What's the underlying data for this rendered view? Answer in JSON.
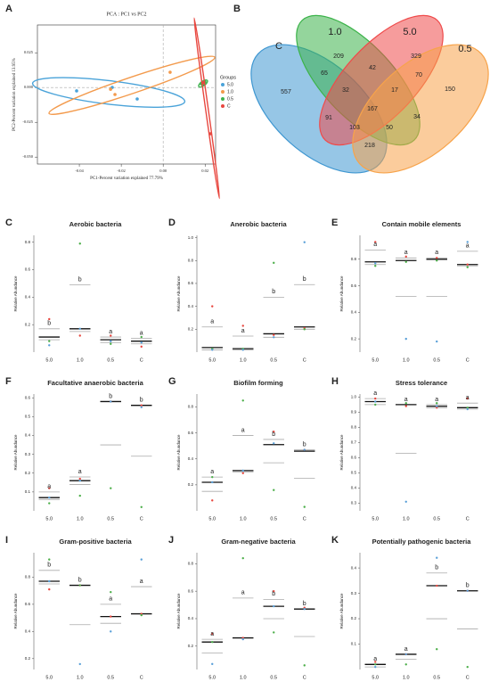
{
  "chart_data": [
    {
      "type": "scatter",
      "label": "A",
      "title": "PCA : PC1 vs PC2",
      "xlabel": "PC1-Percent variation explained 77.79%",
      "ylabel": "PC2-Percent variation explained 13.95%",
      "xlim": [
        -0.06,
        0.025
      ],
      "ylim": [
        -0.055,
        0.045
      ],
      "xticks": [
        -0.04,
        -0.02,
        {
          "value": 0,
          "label": "0.00"
        },
        0.02
      ],
      "yticks": [
        0.025,
        {
          "value": 0,
          "label": "0.000"
        },
        -0.025,
        {
          "value": -0.05,
          "label": "-0.050"
        }
      ],
      "zero_lines": true,
      "legend_title": "Groups",
      "legend": "right",
      "series": [
        {
          "name": "5.0",
          "color": "#4aa3d9",
          "x": [
            -0.0413,
            -0.0124,
            -0.0243
          ],
          "y": [
            -0.0024,
            -0.0082,
            0.0001
          ]
        },
        {
          "name": "1.0",
          "color": "#f39a4c",
          "x": [
            -0.023,
            0.0033,
            -0.0251
          ],
          "y": [
            -0.005,
            0.011,
            -0.0012
          ]
        },
        {
          "name": "0.5",
          "color": "#3fb34f",
          "x": [
            0.0182,
            0.0199,
            0.019
          ],
          "y": [
            0.0027,
            0.004,
            0.002
          ]
        },
        {
          "name": "C",
          "color": "#e8473f",
          "x": [
            0.0225,
            0.0191
          ],
          "y": [
            -0.0332,
            0.0035
          ]
        }
      ]
    },
    {
      "type": "venn",
      "label": "B",
      "sets": [
        {
          "name": "C",
          "color": "#3f97d1"
        },
        {
          "name": "1.0",
          "color": "#3cb34a"
        },
        {
          "name": "5.0",
          "color": "#ef4a4a"
        },
        {
          "name": "0.5",
          "color": "#f7a34a"
        }
      ],
      "values": [
        557,
        209,
        329,
        150,
        65,
        42,
        70,
        32,
        17,
        91,
        167,
        34,
        103,
        50,
        218
      ]
    },
    {
      "type": "box",
      "label": "C",
      "title": "Aerobic bacteria",
      "ylabel": "Relative Abundance",
      "categories": [
        "5.0",
        "1.0",
        "0.5",
        "C"
      ],
      "ylim": [
        0,
        0.85
      ],
      "yticks": [
        0.2,
        0.4,
        0.6,
        0.8
      ],
      "point_colors": [
        "#e8473f",
        "#4daf4a",
        "#5aa0d8"
      ],
      "median": [
        0.11,
        0.17,
        0.09,
        0.08
      ],
      "upper": [
        0.17,
        0.49,
        0.11,
        0.1
      ],
      "lower": [
        0.09,
        0.15,
        0.07,
        0.06
      ],
      "points": [
        [
          0.24,
          0.08,
          0.05
        ],
        [
          0.12,
          0.79,
          0.17
        ],
        [
          0.12,
          0.06,
          0.08
        ],
        [
          0.04,
          0.11,
          0.07
        ]
      ],
      "letters": [
        "b",
        "b",
        "a",
        "a"
      ]
    },
    {
      "type": "box",
      "label": "D",
      "title": "Anerobic bacteria",
      "ylabel": "Relative Abundance",
      "categories": [
        "5.0",
        "1.0",
        "0.5",
        "C"
      ],
      "ylim": [
        0,
        1.02
      ],
      "yticks": [
        0.2,
        0.4,
        0.6,
        0.8,
        {
          "value": 1,
          "label": "1.0"
        }
      ],
      "point_colors": [
        "#e8473f",
        "#4daf4a",
        "#5aa0d8"
      ],
      "median": [
        0.04,
        0.03,
        0.16,
        0.22
      ],
      "upper": [
        0.22,
        0.14,
        0.48,
        0.59
      ],
      "lower": [
        0.02,
        0.02,
        0.13,
        0.2
      ],
      "points": [
        [
          0.4,
          0.03,
          0.02
        ],
        [
          0.23,
          0.03,
          0.02
        ],
        [
          0.15,
          0.78,
          0.13
        ],
        [
          0.21,
          0.2,
          0.96
        ]
      ],
      "letters": [
        "a",
        "a",
        "b",
        "b"
      ]
    },
    {
      "type": "box",
      "label": "E",
      "title": "Contain mobile elements",
      "ylabel": "Relative Abundance",
      "categories": [
        "5.0",
        "1.0",
        "0.5",
        "C"
      ],
      "ylim": [
        0.1,
        0.98
      ],
      "yticks": [
        0.2,
        0.4,
        0.6,
        0.8
      ],
      "point_colors": [
        "#e8473f",
        "#4daf4a",
        "#5aa0d8"
      ],
      "median": [
        0.78,
        0.79,
        0.8,
        0.76
      ],
      "upper": [
        0.87,
        0.81,
        0.81,
        0.86
      ],
      "lower": [
        0.76,
        0.52,
        0.52,
        0.75
      ],
      "points": [
        [
          0.93,
          0.75,
          0.77
        ],
        [
          0.82,
          0.78,
          0.2
        ],
        [
          0.81,
          0.79,
          0.18
        ],
        [
          0.76,
          0.74,
          0.93
        ]
      ],
      "letters": [
        "a",
        "a",
        "a",
        "a"
      ]
    },
    {
      "type": "box",
      "label": "F",
      "title": "Facultative anaerobic bacteria",
      "ylabel": "Relative Abundance",
      "categories": [
        "5.0",
        "1.0",
        "0.5",
        "C"
      ],
      "ylim": [
        0,
        0.62
      ],
      "yticks": [
        0.1,
        0.2,
        0.3,
        0.4,
        0.5,
        0.6
      ],
      "point_colors": [
        "#e8473f",
        "#4daf4a",
        "#5aa0d8"
      ],
      "median": [
        0.07,
        0.16,
        0.58,
        0.56
      ],
      "upper": [
        0.1,
        0.18,
        0.58,
        0.56
      ],
      "lower": [
        0.06,
        0.14,
        0.35,
        0.29
      ],
      "points": [
        [
          0.12,
          0.04,
          0.07
        ],
        [
          0.17,
          0.08,
          0.16
        ],
        [
          0.58,
          0.12,
          0.58
        ],
        [
          0.56,
          0.02,
          0.55
        ]
      ],
      "letters": [
        "a",
        "a",
        "b",
        "b"
      ]
    },
    {
      "type": "box",
      "label": "G",
      "title": "Biofilm forming",
      "ylabel": "Relative Abundance",
      "categories": [
        "5.0",
        "1.0",
        "0.5",
        "C"
      ],
      "ylim": [
        0,
        0.9
      ],
      "yticks": [
        0.2,
        0.4,
        0.6,
        0.8
      ],
      "point_colors": [
        "#e8473f",
        "#4daf4a",
        "#5aa0d8"
      ],
      "median": [
        0.22,
        0.31,
        0.51,
        0.46
      ],
      "upper": [
        0.26,
        0.58,
        0.55,
        0.47
      ],
      "lower": [
        0.15,
        0.3,
        0.37,
        0.25
      ],
      "points": [
        [
          0.08,
          0.26,
          0.22
        ],
        [
          0.29,
          0.85,
          0.31
        ],
        [
          0.61,
          0.16,
          0.52
        ],
        [
          0.47,
          0.03,
          0.47
        ]
      ],
      "letters": [
        "a",
        "a",
        "b",
        "b"
      ]
    },
    {
      "type": "box",
      "label": "H",
      "title": "Stress tolerance",
      "ylabel": "Relative Abundance",
      "categories": [
        "5.0",
        "1.0",
        "0.5",
        "C"
      ],
      "ylim": [
        0.25,
        1.02
      ],
      "yticks": [
        0.3,
        0.4,
        0.5,
        0.6,
        0.7,
        0.8,
        0.9,
        {
          "value": 1,
          "label": "1.0"
        }
      ],
      "point_colors": [
        "#e8473f",
        "#4daf4a",
        "#5aa0d8"
      ],
      "median": [
        0.97,
        0.95,
        0.94,
        0.93
      ],
      "upper": [
        0.99,
        0.95,
        0.95,
        0.96
      ],
      "lower": [
        0.95,
        0.63,
        0.93,
        0.92
      ],
      "points": [
        [
          0.99,
          0.95,
          0.97
        ],
        [
          0.94,
          0.96,
          0.31
        ],
        [
          0.93,
          0.96,
          0.94
        ],
        [
          0.99,
          0.93,
          0.92
        ]
      ],
      "letters": [
        "a",
        "a",
        "a",
        "a"
      ]
    },
    {
      "type": "box",
      "label": "I",
      "title": "Gram-positive bacteria",
      "ylabel": "Relative Abundance",
      "categories": [
        "5.0",
        "1.0",
        "0.5",
        "C"
      ],
      "ylim": [
        0.12,
        0.98
      ],
      "yticks": [
        0.2,
        0.4,
        0.6,
        0.8
      ],
      "point_colors": [
        "#e8473f",
        "#4daf4a",
        "#5aa0d8"
      ],
      "median": [
        0.77,
        0.74,
        0.51,
        0.53
      ],
      "upper": [
        0.85,
        0.74,
        0.6,
        0.73
      ],
      "lower": [
        0.75,
        0.45,
        0.46,
        0.53
      ],
      "points": [
        [
          0.71,
          0.93,
          0.77
        ],
        [
          0.74,
          0.74,
          0.16
        ],
        [
          0.51,
          0.69,
          0.4
        ],
        [
          0.53,
          0.52,
          0.93
        ]
      ],
      "letters": [
        "b",
        "b",
        "a",
        "a"
      ]
    },
    {
      "type": "box",
      "label": "J",
      "title": "Gram-negative bacteria",
      "ylabel": "Relative Abundance",
      "categories": [
        "5.0",
        "1.0",
        "0.5",
        "C"
      ],
      "ylim": [
        0.03,
        0.88
      ],
      "yticks": [
        0.2,
        0.4,
        0.6,
        0.8
      ],
      "point_colors": [
        "#e8473f",
        "#4daf4a",
        "#5aa0d8"
      ],
      "median": [
        0.23,
        0.26,
        0.49,
        0.47
      ],
      "upper": [
        0.25,
        0.55,
        0.54,
        0.47
      ],
      "lower": [
        0.15,
        0.26,
        0.4,
        0.27
      ],
      "points": [
        [
          0.29,
          0.23,
          0.07
        ],
        [
          0.26,
          0.84,
          0.25
        ],
        [
          0.6,
          0.3,
          0.49
        ],
        [
          0.48,
          0.06,
          0.47
        ]
      ],
      "letters": [
        "a",
        "a",
        "b",
        "b"
      ]
    },
    {
      "type": "box",
      "label": "K",
      "title": "Potentially pathogenic bacteria",
      "ylabel": "Relative Abundance",
      "categories": [
        "5.0",
        "1.0",
        "0.5",
        "C"
      ],
      "ylim": [
        0,
        0.46
      ],
      "yticks": [
        0.1,
        0.2,
        0.3,
        0.4
      ],
      "point_colors": [
        "#e8473f",
        "#4daf4a",
        "#5aa0d8"
      ],
      "median": [
        0.02,
        0.06,
        0.33,
        0.31
      ],
      "upper": [
        0.02,
        0.06,
        0.38,
        0.31
      ],
      "lower": [
        0.01,
        0.04,
        0.2,
        0.16
      ],
      "points": [
        [
          0.03,
          0.02,
          0.01
        ],
        [
          0.06,
          0.02,
          0.06
        ],
        [
          0.33,
          0.08,
          0.44
        ],
        [
          0.31,
          0.01,
          0.31
        ]
      ],
      "letters": [
        "a",
        "a",
        "b",
        "b"
      ]
    }
  ]
}
